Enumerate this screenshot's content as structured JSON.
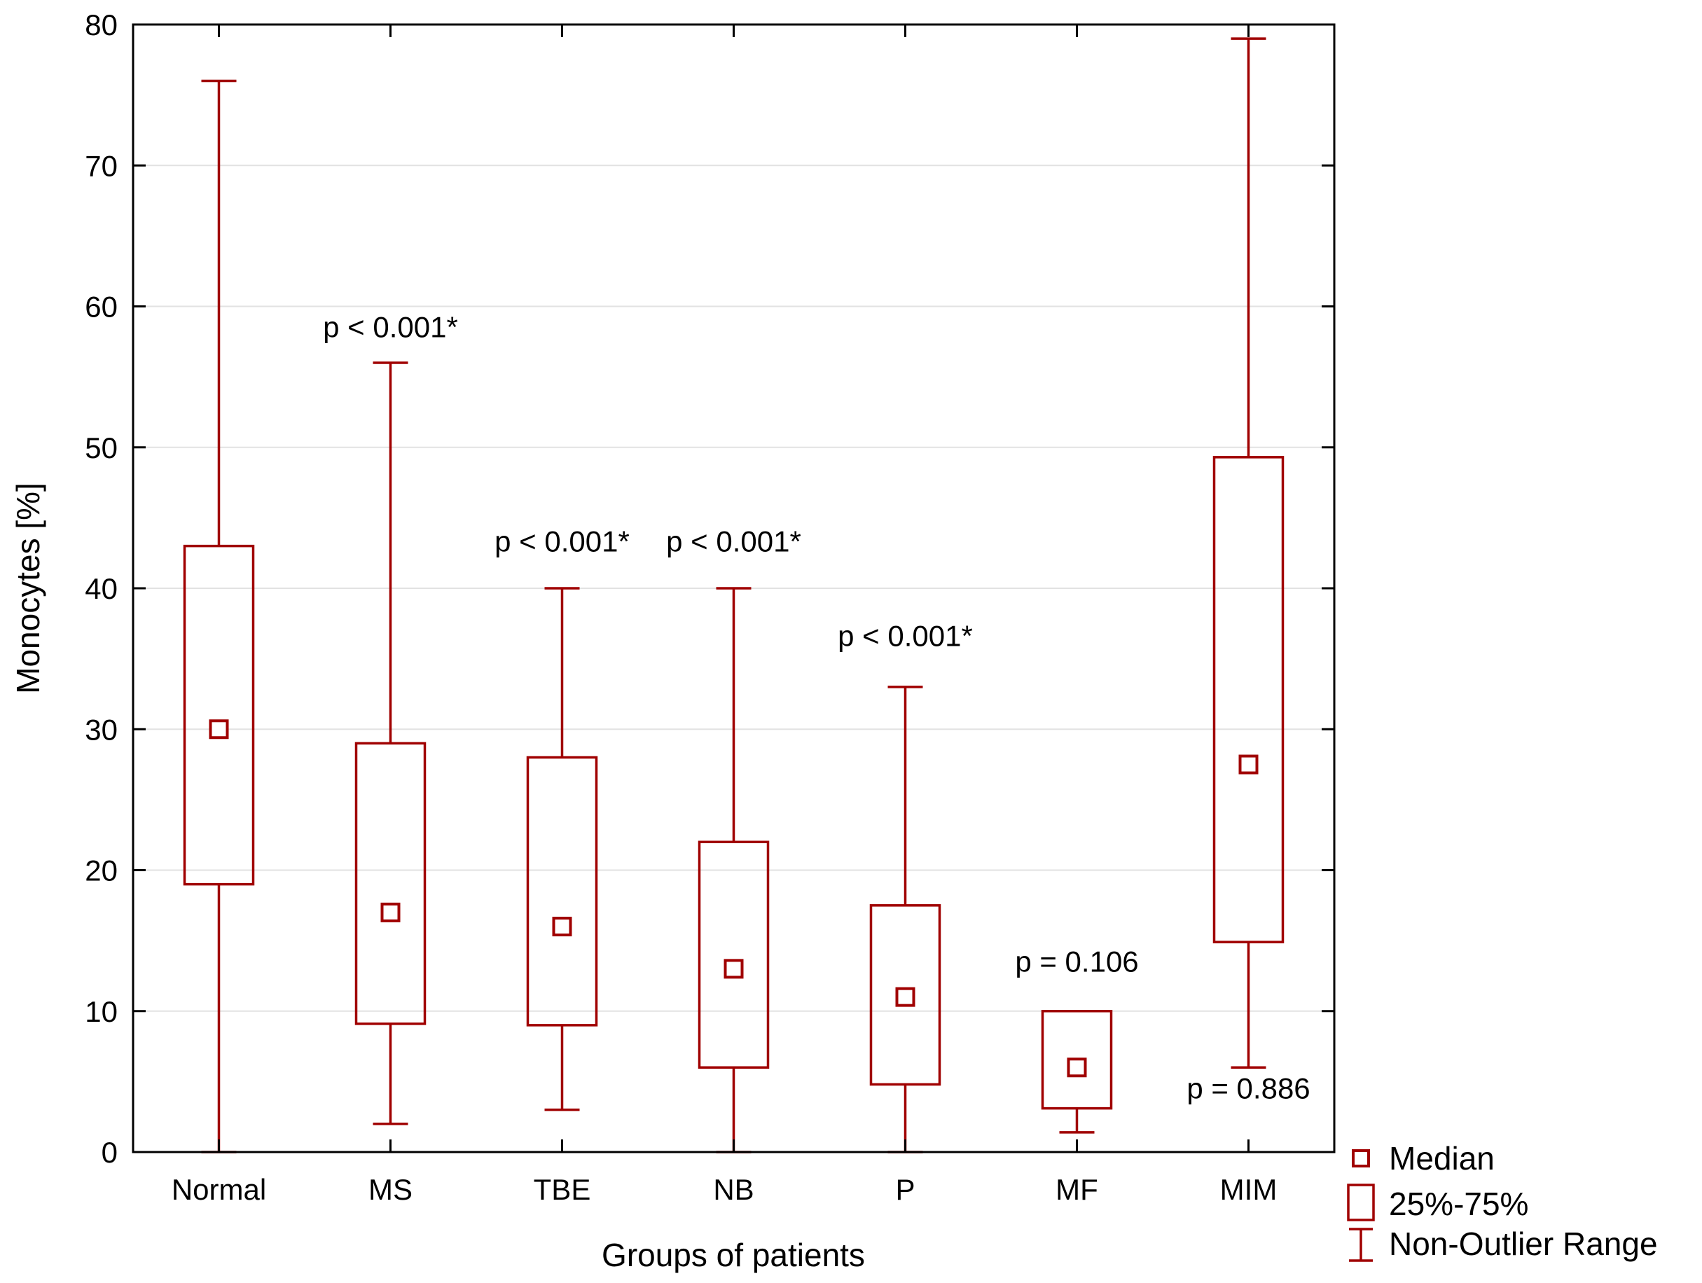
{
  "chart_data": {
    "type": "boxplot",
    "title": "",
    "xlabel": "Groups of patients",
    "ylabel": "Monocytes [%]",
    "ylim": [
      0,
      80
    ],
    "yticks": [
      0,
      10,
      20,
      30,
      40,
      50,
      60,
      70,
      80
    ],
    "grid": true,
    "color": "#a00000",
    "categories": [
      "Normal",
      "MS",
      "TBE",
      "NB",
      "P",
      "MF",
      "MIM"
    ],
    "groups": [
      {
        "name": "Normal",
        "min": 0,
        "q1": 19,
        "median": 30,
        "q3": 43,
        "max": 76,
        "annotation": "",
        "annotation_y": null
      },
      {
        "name": "MS",
        "min": 2,
        "q1": 9.1,
        "median": 17,
        "q3": 29,
        "max": 56,
        "annotation": "p < 0.001*",
        "annotation_y": 58.5
      },
      {
        "name": "TBE",
        "min": 3,
        "q1": 9,
        "median": 16,
        "q3": 28,
        "max": 40,
        "annotation": "p < 0.001*",
        "annotation_y": 43.3
      },
      {
        "name": "NB",
        "min": 0,
        "q1": 6,
        "median": 13,
        "q3": 22,
        "max": 40,
        "annotation": "p < 0.001*",
        "annotation_y": 43.3
      },
      {
        "name": "P",
        "min": 0,
        "q1": 4.8,
        "median": 11,
        "q3": 17.5,
        "max": 33,
        "annotation": "p < 0.001*",
        "annotation_y": 36.6
      },
      {
        "name": "MF",
        "min": 1.4,
        "q1": 3.1,
        "median": 6,
        "q3": 10,
        "max": 10,
        "annotation": "p = 0.106",
        "annotation_y": 13.5
      },
      {
        "name": "MIM",
        "min": 6,
        "q1": 14.9,
        "median": 27.5,
        "q3": 49.3,
        "max": 79,
        "annotation": "p = 0.886",
        "annotation_y": 4.5
      }
    ],
    "legend": {
      "position": "bottom-right",
      "items": [
        "Median",
        "25%-75%",
        "Non-Outlier Range"
      ]
    }
  }
}
